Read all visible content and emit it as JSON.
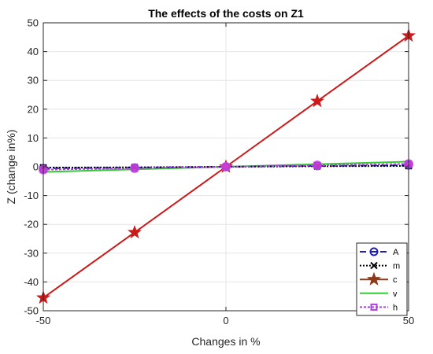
{
  "chart_data": {
    "type": "line",
    "title": "The effects of the costs on Z1",
    "xlabel": "Changes in %",
    "ylabel": "Z (change in%)",
    "xlim": [
      -50,
      50
    ],
    "ylim": [
      -50,
      50
    ],
    "xticks": [
      -50,
      0,
      50
    ],
    "yticks": [
      -50,
      -40,
      -30,
      -20,
      -10,
      0,
      10,
      20,
      30,
      40,
      50
    ],
    "grid": true,
    "legend_position": "bottom-right",
    "x": [
      -50,
      -25,
      0,
      25,
      50
    ],
    "series": [
      {
        "name": "A",
        "values": [
          -0.5,
          -0.3,
          0,
          0.3,
          0.5
        ],
        "color": "#1f1fb4",
        "dash": "8,5",
        "marker": "circle-bar",
        "width": 2
      },
      {
        "name": "m",
        "values": [
          -0.3,
          -0.2,
          0,
          0.2,
          0.3
        ],
        "color": "#000000",
        "dash": "2,2",
        "marker": "x",
        "width": 2
      },
      {
        "name": "c",
        "values": [
          -45.5,
          -22.8,
          0,
          22.8,
          45.5
        ],
        "color": "#cc1a1a",
        "dash": "",
        "marker": "star",
        "width": 2,
        "legend_color": "#8b3a1a"
      },
      {
        "name": "v",
        "values": [
          -1.8,
          -0.9,
          0,
          0.9,
          1.8
        ],
        "color": "#33cc33",
        "dash": "",
        "marker": "none",
        "width": 2
      },
      {
        "name": "h",
        "values": [
          -1.0,
          -0.5,
          0,
          0.5,
          1.0
        ],
        "color": "#b040e0",
        "dash": "3,2",
        "marker": "square",
        "width": 2
      }
    ]
  }
}
